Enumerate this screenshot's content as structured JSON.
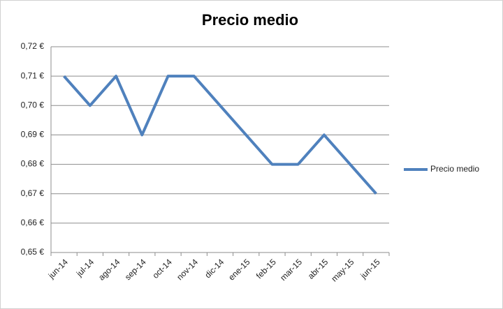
{
  "chart_data": {
    "type": "line",
    "title": "Precio medio",
    "categories": [
      "jun-14",
      "jul-14",
      "ago-14",
      "sep-14",
      "oct-14",
      "nov-14",
      "dic-14",
      "ene-15",
      "feb-15",
      "mar-15",
      "abr-15",
      "may-15",
      "jun-15"
    ],
    "series": [
      {
        "name": "Precio medio",
        "color": "#4f81bd",
        "values": [
          0.71,
          0.7,
          0.71,
          0.69,
          0.71,
          0.71,
          0.7,
          0.69,
          0.68,
          0.68,
          0.69,
          0.68,
          0.67
        ]
      }
    ],
    "ylim": [
      0.65,
      0.72
    ],
    "yticks": [
      {
        "value": 0.65,
        "label": "0,65 €"
      },
      {
        "value": 0.66,
        "label": "0,66 €"
      },
      {
        "value": 0.67,
        "label": "0,67 €"
      },
      {
        "value": 0.68,
        "label": "0,68 €"
      },
      {
        "value": 0.69,
        "label": "0,69 €"
      },
      {
        "value": 0.7,
        "label": "0,70 €"
      },
      {
        "value": 0.71,
        "label": "0,71 €"
      },
      {
        "value": 0.72,
        "label": "0,72 €"
      }
    ],
    "grid": true,
    "legend": "right"
  }
}
